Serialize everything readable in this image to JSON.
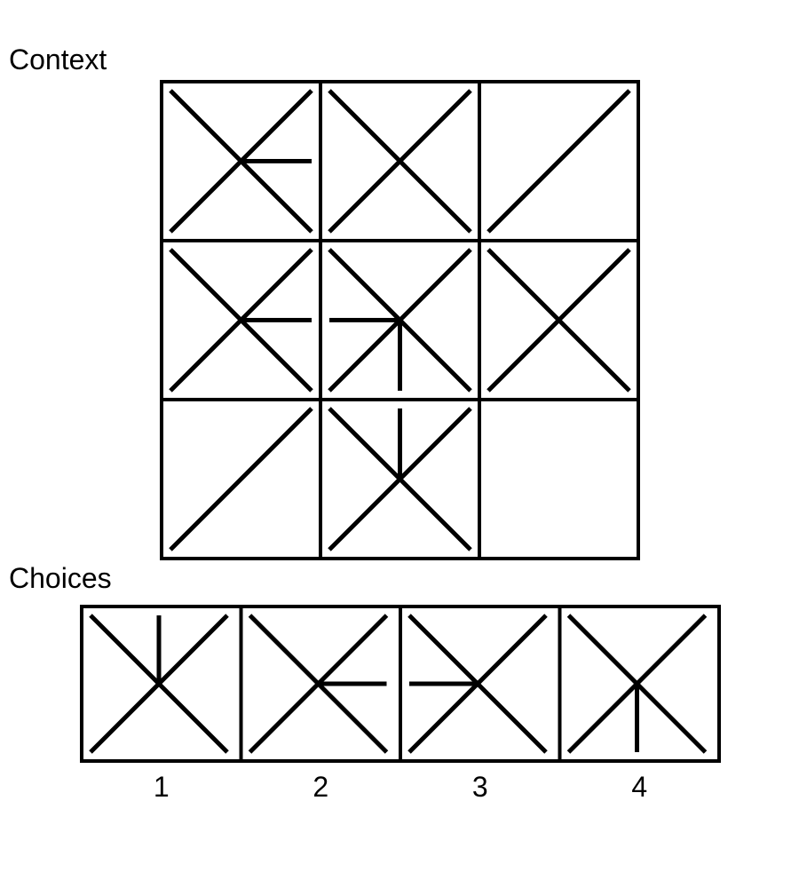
{
  "context_label": "Context",
  "choices_label": "Choices",
  "context_grid": {
    "rows": 3,
    "cols": 3,
    "cells": [
      {
        "diag_main": true,
        "diag_anti": true,
        "spokes": [
          "right"
        ]
      },
      {
        "diag_main": true,
        "diag_anti": true,
        "spokes": []
      },
      {
        "diag_main": false,
        "diag_anti": true,
        "spokes": []
      },
      {
        "diag_main": true,
        "diag_anti": true,
        "spokes": [
          "right"
        ]
      },
      {
        "diag_main": true,
        "diag_anti": true,
        "spokes": [
          "left",
          "down"
        ]
      },
      {
        "diag_main": true,
        "diag_anti": true,
        "spokes": []
      },
      {
        "diag_main": false,
        "diag_anti": true,
        "spokes": []
      },
      {
        "diag_main": true,
        "diag_anti": true,
        "spokes": [
          "up"
        ]
      },
      {
        "empty": true
      }
    ]
  },
  "choices": [
    {
      "label": "1",
      "diag_main": true,
      "diag_anti": true,
      "spokes": [
        "up"
      ]
    },
    {
      "label": "2",
      "diag_main": true,
      "diag_anti": true,
      "spokes": [
        "right"
      ]
    },
    {
      "label": "3",
      "diag_main": true,
      "diag_anti": true,
      "spokes": [
        "left"
      ]
    },
    {
      "label": "4",
      "diag_main": true,
      "diag_anti": true,
      "spokes": [
        "down"
      ]
    }
  ],
  "colors": {
    "stroke": "#000000",
    "background": "#ffffff"
  }
}
